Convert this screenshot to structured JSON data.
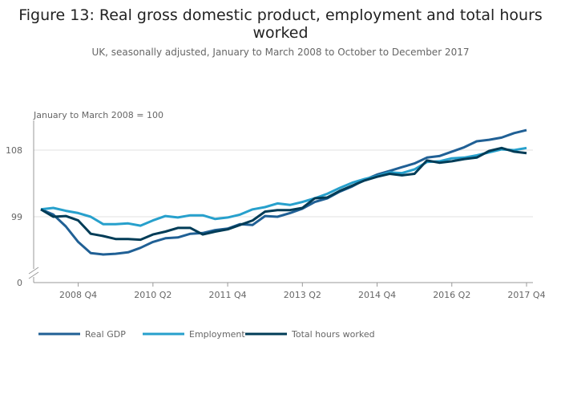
{
  "chart_data": {
    "type": "line",
    "title": "Figure 13: Real gross domestic product, employment and total hours worked",
    "subtitle": "UK, seasonally adjusted, January to March 2008 to October to December 2017",
    "ylabel": "January to March 2008 = 100",
    "yticks": [
      0,
      99,
      108
    ],
    "y_axis_break": true,
    "ylim": [
      93,
      111
    ],
    "grid": true,
    "legend_position": "bottom",
    "x": [
      "2008 Q1",
      "2008 Q2",
      "2008 Q3",
      "2008 Q4",
      "2009 Q1",
      "2009 Q2",
      "2009 Q3",
      "2009 Q4",
      "2010 Q1",
      "2010 Q2",
      "2010 Q3",
      "2010 Q4",
      "2011 Q1",
      "2011 Q2",
      "2011 Q3",
      "2011 Q4",
      "2012 Q1",
      "2012 Q2",
      "2012 Q3",
      "2012 Q4",
      "2013 Q1",
      "2013 Q2",
      "2013 Q3",
      "2013 Q4",
      "2014 Q1",
      "2014 Q2",
      "2014 Q3",
      "2014 Q4",
      "2015 Q1",
      "2015 Q2",
      "2015 Q3",
      "2015 Q4",
      "2016 Q1",
      "2016 Q2",
      "2016 Q3",
      "2016 Q4",
      "2017 Q1",
      "2017 Q2",
      "2017 Q3",
      "2017 Q4"
    ],
    "xtick_labels": [
      "2008 Q4",
      "2010 Q2",
      "2011 Q4",
      "2013 Q2",
      "2014 Q4",
      "2016 Q2",
      "2017 Q4"
    ],
    "series": [
      {
        "name": "Real GDP",
        "color": "#206095",
        "values": [
          100,
          99.3,
          97.7,
          95.6,
          94.1,
          93.9,
          94.0,
          94.2,
          94.8,
          95.6,
          96.1,
          96.2,
          96.7,
          96.8,
          97.2,
          97.4,
          98.0,
          97.9,
          99.1,
          99.0,
          99.5,
          100.1,
          101.0,
          101.5,
          102.4,
          103.1,
          104.0,
          104.7,
          105.2,
          105.7,
          106.2,
          107.0,
          107.2,
          107.8,
          108.4,
          109.2,
          109.4,
          109.7,
          110.3,
          110.7
        ]
      },
      {
        "name": "Employment",
        "color": "#27a0cc",
        "values": [
          100,
          100.2,
          99.8,
          99.5,
          99.0,
          98.0,
          98.0,
          98.1,
          97.8,
          98.5,
          99.1,
          98.9,
          99.2,
          99.2,
          98.7,
          98.9,
          99.3,
          100.0,
          100.3,
          100.8,
          100.6,
          101.0,
          101.5,
          102.1,
          102.9,
          103.6,
          104.1,
          104.5,
          105.0,
          104.9,
          105.4,
          106.4,
          106.5,
          106.9,
          107.0,
          107.3,
          107.7,
          108.1,
          108.0,
          108.3
        ]
      },
      {
        "name": "Total hours worked",
        "color": "#003c57",
        "values": [
          100,
          99.0,
          99.1,
          98.5,
          96.7,
          96.4,
          96.0,
          96.0,
          95.9,
          96.6,
          97.0,
          97.5,
          97.5,
          96.6,
          97.0,
          97.3,
          97.9,
          98.5,
          99.7,
          99.9,
          99.9,
          100.2,
          101.5,
          101.6,
          102.5,
          103.2,
          103.9,
          104.4,
          104.8,
          104.6,
          104.8,
          106.6,
          106.3,
          106.5,
          106.8,
          107.0,
          107.9,
          108.3,
          107.8,
          107.6
        ]
      }
    ]
  }
}
